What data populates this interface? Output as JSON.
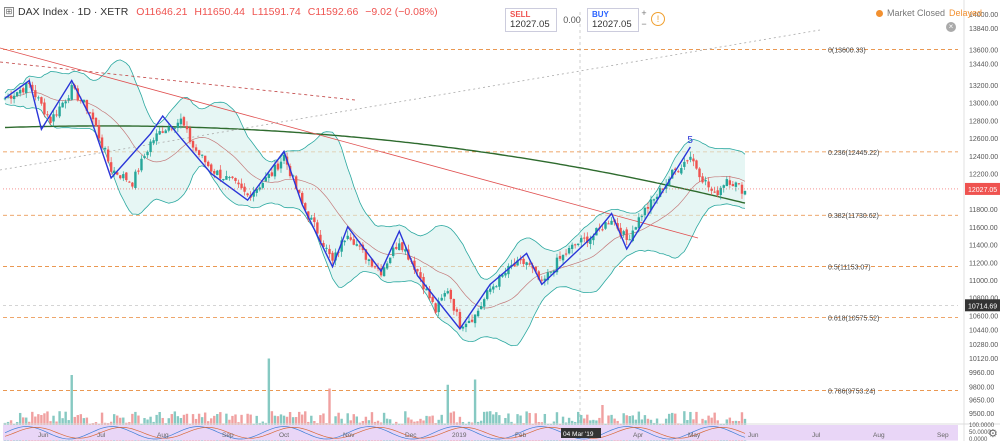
{
  "header": {
    "symbol": "DAX Index · 1D · XETR",
    "open": "O11646.21",
    "high": "H11650.44",
    "low": "L11591.74",
    "close": "C11592.66",
    "change": "−9.02 (−0.08%)"
  },
  "trade": {
    "sell_label": "SELL",
    "sell_value": "12027.05",
    "spread": "0.00",
    "buy_label": "BUY",
    "buy_value": "12027.05",
    "plus": "+",
    "minus": "−"
  },
  "market": {
    "status": "Market Closed",
    "delayed": "Delayed"
  },
  "icons": {
    "info": "info-icon",
    "close": "close-icon",
    "gear": "gear-icon",
    "square": "square-icon"
  },
  "colors": {
    "up": "#26a69a",
    "down": "#ef5350",
    "fib": "#e8893a",
    "ma": "#2e6b2e",
    "wave": "#2a35d8",
    "trend": "#e05050",
    "band": "#2ba8a0"
  },
  "fib_levels": [
    {
      "label": "0(13600.33)",
      "price": 13600.33
    },
    {
      "label": "0.236(12445.22)",
      "price": 12445.22
    },
    {
      "label": "0.382(11730.62)",
      "price": 11730.62
    },
    {
      "label": "0.5(11153.07)",
      "price": 11153.07
    },
    {
      "label": "0.618(10575.52)",
      "price": 10575.52
    },
    {
      "label": "0.786(9753.24)",
      "price": 9753.24
    }
  ],
  "wave_label": "5",
  "price_axis": [
    "14000.00",
    "13840.00",
    "13600.00",
    "13440.00",
    "13200.00",
    "13000.00",
    "12800.00",
    "12600.00",
    "12400.00",
    "12200.00",
    "12000.00",
    "11800.00",
    "11600.00",
    "11400.00",
    "11200.00",
    "11000.00",
    "10800.00",
    "10600.00",
    "10440.00",
    "10280.00",
    "10120.00",
    "9960.00",
    "9800.00",
    "9650.00",
    "9500.00"
  ],
  "price_axis_values": [
    14000,
    13840,
    13600,
    13440,
    13200,
    13000,
    12800,
    12600,
    12400,
    12200,
    12000,
    11800,
    11600,
    11400,
    11200,
    11000,
    10800,
    10600,
    10440,
    10280,
    10120,
    9960,
    9800,
    9650,
    9500
  ],
  "current_price_label": "12027.05",
  "current_price": 12027.05,
  "crosshair_price_label": "10714.69",
  "crosshair_price": 10714.69,
  "osc_axis": [
    "100.0000",
    "50.0000",
    "0.0000"
  ],
  "time_axis": [
    "Jun",
    "Jul",
    "Aug",
    "Sep",
    "Oct",
    "Nov",
    "Dec",
    "2019",
    "Feb",
    "04 Mar '19",
    "Apr",
    "May",
    "Jun",
    "Jul",
    "Aug",
    "Sep"
  ],
  "chart_data": {
    "type": "candlestick",
    "title": "DAX Index · 1D · XETR",
    "xlabel": "",
    "ylabel": "",
    "ylim": [
      9500,
      14000
    ],
    "x": [
      "2018-05",
      "2018-06",
      "2018-07",
      "2018-08",
      "2018-09",
      "2018-10",
      "2018-11",
      "2018-12",
      "2019-01",
      "2019-02",
      "2019-03",
      "2019-04",
      "2019-05"
    ],
    "series": [
      {
        "name": "",
        "values": [
          13100,
          12900,
          12600,
          12400,
          12300,
          11500,
          11200,
          10750,
          11050,
          11200,
          11600,
          12200,
          12100
        ]
      }
    ],
    "last_close": 11592.66
  }
}
